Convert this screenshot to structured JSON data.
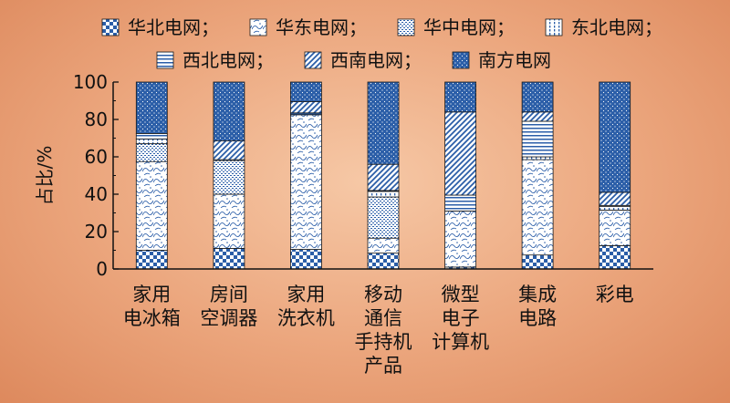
{
  "chart_data": {
    "type": "bar",
    "stacked": true,
    "ylabel": "占比/%",
    "ylim": [
      0,
      100
    ],
    "yticks": [
      0,
      20,
      40,
      60,
      80,
      100
    ],
    "legend_position": "top",
    "categories": [
      [
        "家用",
        "电冰箱"
      ],
      [
        "房间",
        "空调器"
      ],
      [
        "家用",
        "洗衣机"
      ],
      [
        "移动",
        "通信",
        "手持机",
        "产品"
      ],
      [
        "微型",
        "电子",
        "计算机"
      ],
      [
        "集成",
        "电路"
      ],
      [
        "彩电"
      ]
    ],
    "series": [
      {
        "name": "华北电网；",
        "pattern": "checker",
        "values": [
          10,
          11,
          10.5,
          8.5,
          1,
          7.5,
          12.5
        ]
      },
      {
        "name": "华东电网；",
        "pattern": "swirl",
        "values": [
          47.5,
          29,
          72,
          8,
          30,
          51,
          19
        ]
      },
      {
        "name": "华中电网；",
        "pattern": "grid",
        "values": [
          9.5,
          18,
          0,
          22,
          0,
          0,
          0
        ]
      },
      {
        "name": "东北电网；",
        "pattern": "vdash",
        "values": [
          2.5,
          0.5,
          0,
          3,
          0,
          1.5,
          2
        ]
      },
      {
        "name": "西北电网；",
        "pattern": "hlines",
        "values": [
          3,
          0,
          1,
          0.5,
          8.5,
          19,
          0.5
        ]
      },
      {
        "name": "西南电网；",
        "pattern": "diag",
        "values": [
          0,
          10,
          6,
          14,
          44.5,
          5,
          7
        ]
      },
      {
        "name": "南方电网",
        "pattern": "dots",
        "values": [
          27.5,
          31.5,
          10.5,
          44,
          16,
          16,
          59
        ]
      }
    ],
    "colors": {
      "accent": "#2b5ea8",
      "background": "#eba57c"
    }
  }
}
